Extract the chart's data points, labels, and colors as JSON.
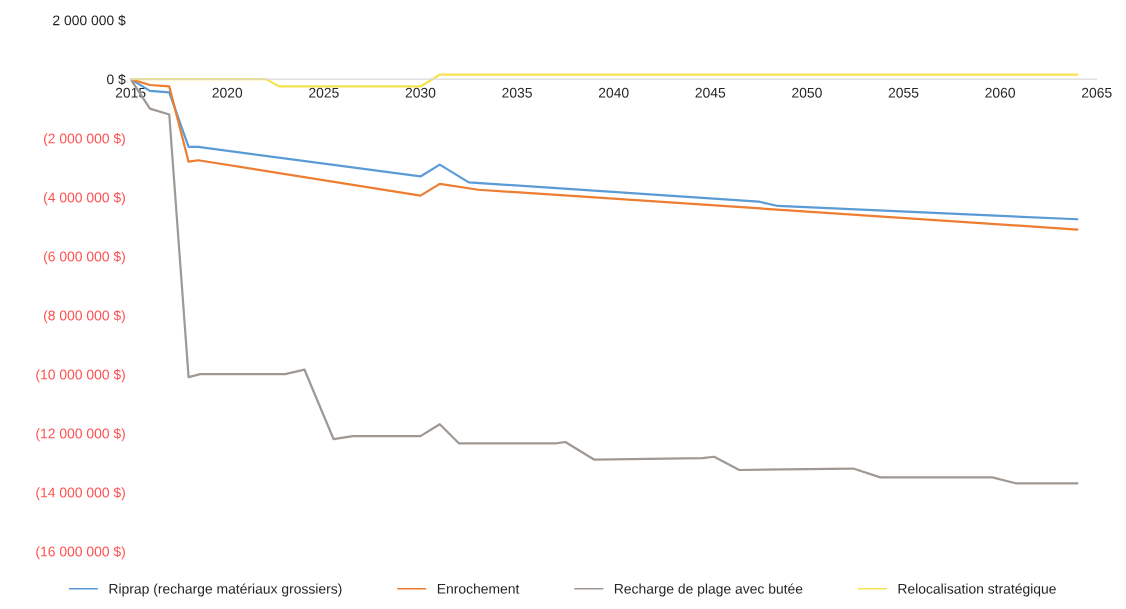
{
  "chart_data": {
    "type": "line",
    "xlim": [
      2015,
      2065
    ],
    "xticks": [
      2015,
      2020,
      2025,
      2030,
      2035,
      2040,
      2045,
      2050,
      2055,
      2060,
      2065
    ],
    "ylim": [
      -16000000,
      2000000
    ],
    "yticks": [
      {
        "value": 2000000,
        "label": "2 000 000 $"
      },
      {
        "value": 0,
        "label": "0 $"
      },
      {
        "value": -2000000,
        "label": "(2 000 000 $)"
      },
      {
        "value": -4000000,
        "label": "(4 000 000 $)"
      },
      {
        "value": -6000000,
        "label": "(6 000 000 $)"
      },
      {
        "value": -8000000,
        "label": "(8 000 000 $)"
      },
      {
        "value": -10000000,
        "label": "(10 000 000 $)"
      },
      {
        "value": -12000000,
        "label": "(12 000 000 $)"
      },
      {
        "value": -14000000,
        "label": "(14 000 000 $)"
      },
      {
        "value": -16000000,
        "label": "(16 000 000 $)"
      }
    ],
    "grid": false,
    "legend": "bottom",
    "marker": "none",
    "line_style": "solid",
    "series": [
      {
        "name": "Riprap (recharge matériaux grossiers)",
        "color": "#5b9bd5",
        "x": [
          2015,
          2016,
          2017,
          2018,
          2018.5,
          2030,
          2031,
          2032.5,
          2047.5,
          2048.5,
          2064
        ],
        "values": [
          0,
          -400000,
          -450000,
          -2300000,
          -2300000,
          -3300000,
          -2900000,
          -3500000,
          -4150000,
          -4300000,
          -4750000
        ]
      },
      {
        "name": "Enrochement",
        "color": "#ed7d31",
        "x": [
          2015,
          2016,
          2017,
          2018,
          2018.5,
          2030,
          2031,
          2033,
          2064
        ],
        "values": [
          0,
          -200000,
          -250000,
          -2800000,
          -2750000,
          -3950000,
          -3550000,
          -3750000,
          -5100000
        ]
      },
      {
        "name": "Recharge de plage avec butée",
        "color": "#a09892",
        "x": [
          2015,
          2016,
          2017,
          2018,
          2018.6,
          2023,
          2024,
          2025.5,
          2026.5,
          2030,
          2031,
          2032,
          2037,
          2037.5,
          2039,
          2044.6,
          2045.2,
          2046.5,
          2052.4,
          2053.8,
          2059.6,
          2060.8,
          2064
        ],
        "values": [
          0,
          -1000000,
          -1200000,
          -10100000,
          -10000000,
          -10000000,
          -9850000,
          -12200000,
          -12100000,
          -12100000,
          -11700000,
          -12350000,
          -12350000,
          -12300000,
          -12900000,
          -12850000,
          -12800000,
          -13250000,
          -13200000,
          -13500000,
          -13500000,
          -13700000,
          -13700000
        ]
      },
      {
        "name": "Relocalisation stratégique",
        "color": "#f5e44f",
        "x": [
          2015,
          2022,
          2022.7,
          2030,
          2031,
          2064
        ],
        "values": [
          0,
          0,
          -250000,
          -250000,
          150000,
          150000
        ]
      }
    ]
  }
}
